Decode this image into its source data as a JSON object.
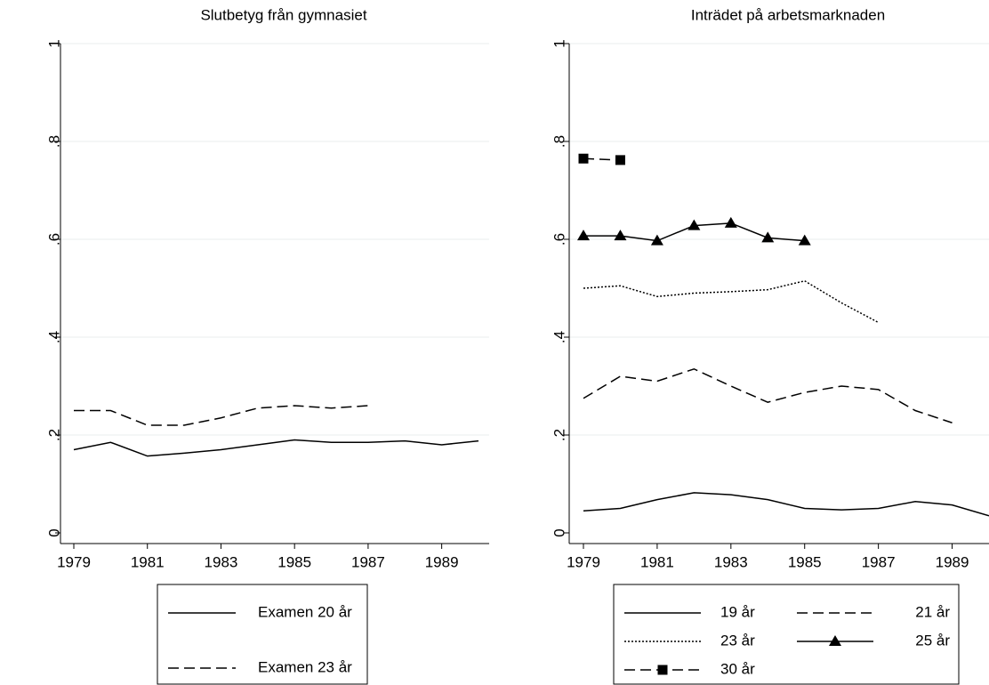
{
  "chart_data": [
    {
      "type": "line",
      "title": "Slutbetyg från gymnasiet",
      "x": [
        1979,
        1980,
        1981,
        1982,
        1983,
        1984,
        1985,
        1986,
        1987,
        1988,
        1989,
        1990
      ],
      "xlim": [
        1979,
        1990
      ],
      "xticks": [
        1979,
        1981,
        1983,
        1985,
        1987,
        1989
      ],
      "ylim": [
        0,
        1
      ],
      "yticks": [
        0,
        {
          "value": 0.2,
          "label": ".2"
        },
        {
          "value": 0.4,
          "label": ".4"
        },
        {
          "value": 0.6,
          "label": ".6"
        },
        {
          "value": 0.8,
          "label": ".8"
        },
        1
      ],
      "grid": true,
      "legend": "bottom",
      "legend_columns": 1,
      "series": [
        {
          "name": "Examen 20 år",
          "color": "#000000",
          "dash": "solid",
          "values": [
            0.17,
            0.185,
            0.157,
            0.163,
            0.17,
            0.18,
            0.19,
            0.185,
            0.185,
            0.188,
            0.18,
            0.188
          ]
        },
        {
          "name": "Examen 23 år",
          "color": "#000000",
          "dash": "dash",
          "values": [
            0.25,
            0.25,
            0.22,
            0.22,
            0.235,
            0.255,
            0.26,
            0.255,
            0.26,
            null,
            null,
            null
          ]
        }
      ]
    },
    {
      "type": "line",
      "title": "Inträdet på arbetsmarknaden",
      "x": [
        1979,
        1980,
        1981,
        1982,
        1983,
        1984,
        1985,
        1986,
        1987,
        1988,
        1989,
        1990
      ],
      "xlim": [
        1979,
        1990
      ],
      "xticks": [
        1979,
        1981,
        1983,
        1985,
        1987,
        1989
      ],
      "ylim": [
        0,
        1
      ],
      "yticks": [
        0,
        {
          "value": 0.2,
          "label": ".2"
        },
        {
          "value": 0.4,
          "label": ".4"
        },
        {
          "value": 0.6,
          "label": ".6"
        },
        {
          "value": 0.8,
          "label": ".8"
        },
        1
      ],
      "grid": true,
      "legend": "bottom",
      "legend_columns": 2,
      "series": [
        {
          "name": "19 år",
          "color": "#000000",
          "dash": "solid",
          "values": [
            0.045,
            0.05,
            0.068,
            0.082,
            0.078,
            0.068,
            0.05,
            0.047,
            0.05,
            0.064,
            0.057,
            0.035
          ]
        },
        {
          "name": "21 år",
          "color": "#000000",
          "dash": "dash",
          "values": [
            0.275,
            0.32,
            0.31,
            0.335,
            0.3,
            0.267,
            0.287,
            0.3,
            0.293,
            0.25,
            0.225,
            null
          ]
        },
        {
          "name": "23 år",
          "color": "#000000",
          "dash": "dot",
          "values": [
            0.5,
            0.505,
            0.483,
            0.49,
            0.493,
            0.497,
            0.515,
            0.47,
            0.43,
            null,
            null,
            null
          ]
        },
        {
          "name": "25 år",
          "color": "#000000",
          "dash": "solid",
          "marker": "triangle",
          "values": [
            0.607,
            0.607,
            0.597,
            0.628,
            0.633,
            0.603,
            0.597,
            null,
            null,
            null,
            null,
            null
          ]
        },
        {
          "name": "30 år",
          "color": "#000000",
          "dash": "dash",
          "marker": "square",
          "values": [
            0.765,
            0.762,
            null,
            null,
            null,
            null,
            null,
            null,
            null,
            null,
            null,
            null
          ]
        }
      ]
    }
  ]
}
